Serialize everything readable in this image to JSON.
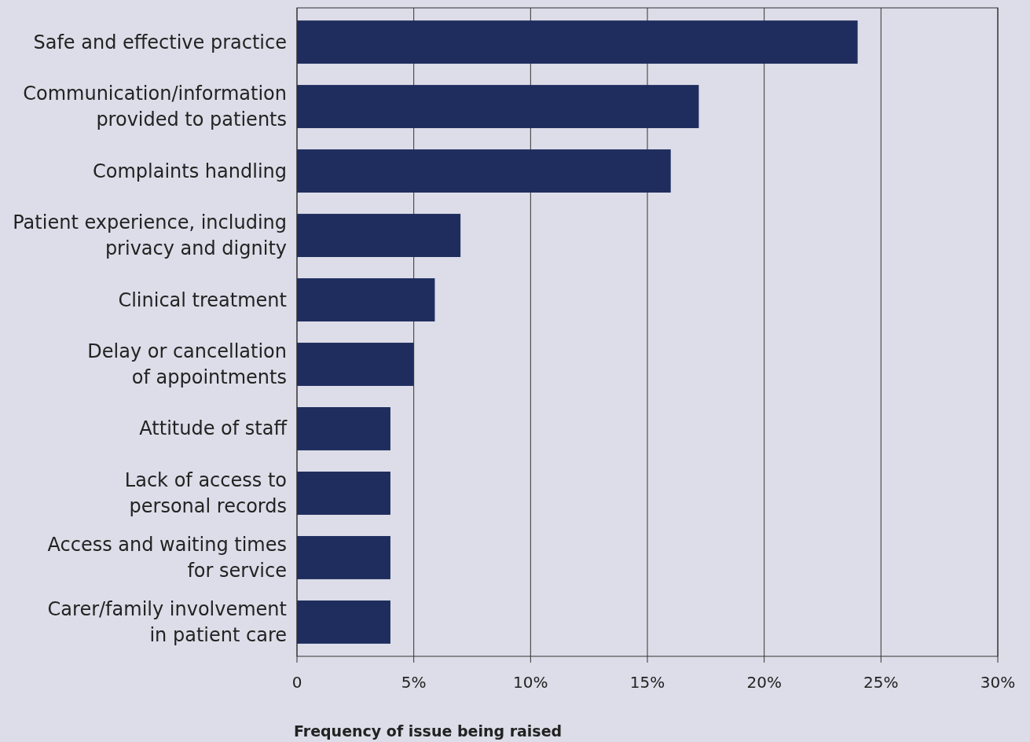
{
  "chart_data": {
    "type": "bar",
    "orientation": "horizontal",
    "xlabel": "Frequency of issue being raised",
    "categories": [
      "Safe and effective practice",
      "Communication/information\nprovided to patients",
      "Complaints handling",
      "Patient experience, including\nprivacy and dignity",
      "Clinical treatment",
      "Delay or cancellation\nof appointments",
      "Attitude of staff",
      "Lack of access to\npersonal records",
      "Access and waiting times\nfor service",
      "Carer/family involvement\nin patient care"
    ],
    "values": [
      24,
      17.2,
      16,
      7,
      5.9,
      5,
      4,
      4,
      4,
      4
    ],
    "color": "#1f2d5e",
    "xlim": [
      0,
      30
    ],
    "xticks": [
      0,
      {
        "value": 5,
        "label": "5%"
      },
      {
        "value": 10,
        "label": "10%"
      },
      {
        "value": 15,
        "label": "15%"
      },
      {
        "value": 20,
        "label": "20%"
      },
      {
        "value": 25,
        "label": "25%"
      },
      {
        "value": 30,
        "label": "30%"
      }
    ],
    "grid": "x"
  }
}
